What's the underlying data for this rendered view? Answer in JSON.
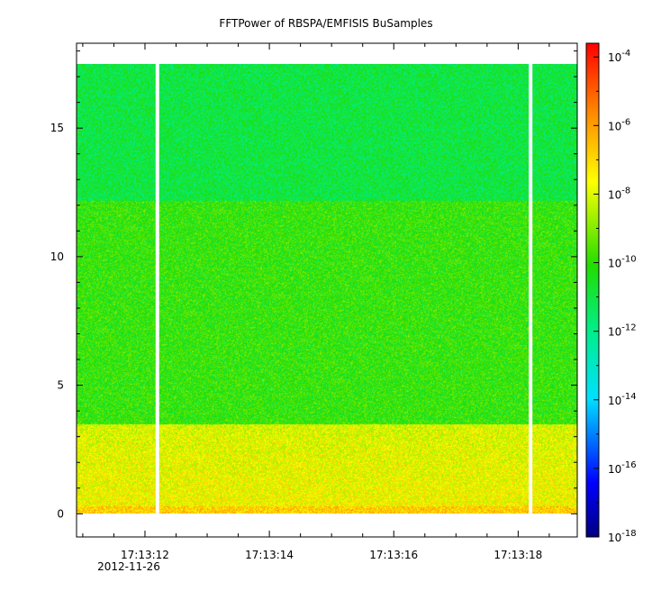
{
  "chart_data": {
    "type": "heatmap",
    "title": "FFTPower of RBSPA/EMFISIS  BuSamples",
    "xlabel": "",
    "ylabel": "",
    "x_ticks": [
      "17:13:12",
      "17:13:14",
      "17:13:16",
      "17:13:18"
    ],
    "x_tick_seconds": [
      12,
      14,
      16,
      18
    ],
    "x_range_seconds": [
      10.9,
      18.95
    ],
    "x_date_label": "2012-11-26",
    "y_ticks": [
      "0",
      "5",
      "10",
      "15"
    ],
    "y_tick_values": [
      0,
      5,
      10,
      15
    ],
    "ylim": [
      -0.9,
      18.3
    ],
    "colorbar": {
      "scale": "log",
      "range_exponent": [
        -18,
        -3.6
      ],
      "tick_exponents": [
        -4,
        -6,
        -8,
        -10,
        -12,
        -14,
        -16,
        -18
      ],
      "tick_base": "10"
    },
    "data_gaps_seconds": [
      12.2,
      18.2
    ],
    "spectrum_bands": [
      {
        "y_from": 0,
        "y_to": 0.3,
        "log_power": -6.8
      },
      {
        "y_from": 0.3,
        "y_to": 3.5,
        "log_power": -8.0
      },
      {
        "y_from": 3.5,
        "y_to": 12.2,
        "log_power": -10.0
      },
      {
        "y_from": 12.2,
        "y_to": 17.5,
        "log_power": -11.0
      }
    ],
    "grid": false
  }
}
